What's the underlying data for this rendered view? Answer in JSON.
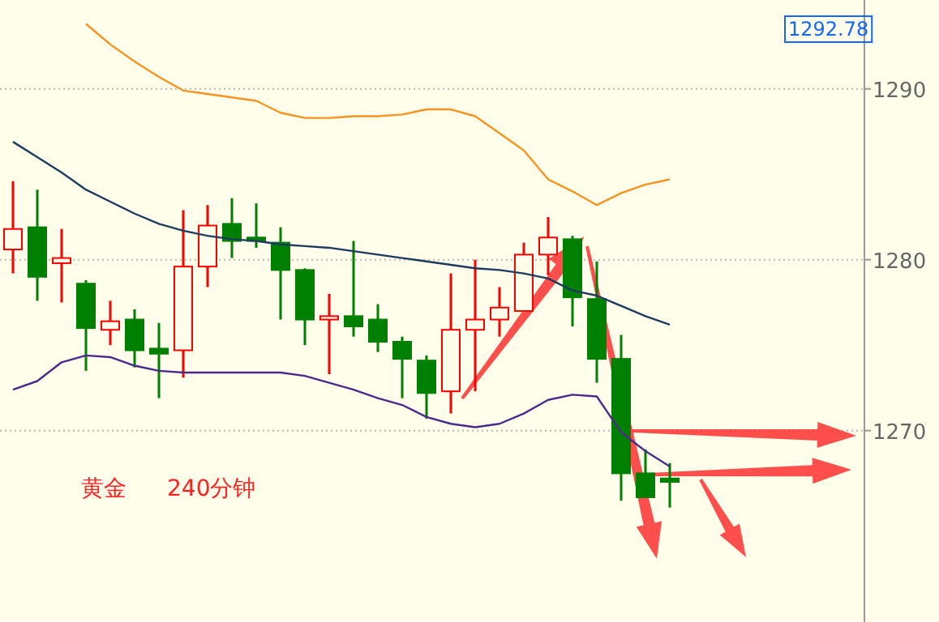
{
  "chart_data": {
    "type": "candlestick",
    "categories": [
      null,
      null,
      null,
      null,
      null,
      null,
      null,
      null,
      null,
      null,
      null,
      null,
      null,
      null,
      null,
      null,
      null,
      null,
      null,
      null,
      null,
      null,
      null,
      null,
      null,
      null,
      null,
      null
    ],
    "ohlc": [
      [
        1280.6,
        1284.6,
        1279.2,
        1281.8
      ],
      [
        1281.9,
        1284.1,
        1277.6,
        1279.0
      ],
      [
        1279.8,
        1281.8,
        1277.5,
        1280.1
      ],
      [
        1278.6,
        1278.8,
        1273.5,
        1276.0
      ],
      [
        1275.9,
        1277.6,
        1275.0,
        1276.4
      ],
      [
        1276.5,
        1277.1,
        1273.7,
        1274.7
      ],
      [
        1274.8,
        1276.3,
        1271.9,
        1274.5
      ],
      [
        1274.7,
        1282.9,
        1273.1,
        1279.6
      ],
      [
        1279.6,
        1283.2,
        1278.4,
        1282.0
      ],
      [
        1282.1,
        1283.6,
        1280.1,
        1281.1
      ],
      [
        1281.3,
        1283.3,
        1280.7,
        1281.1
      ],
      [
        1281.0,
        1281.9,
        1276.5,
        1279.4
      ],
      [
        1279.4,
        1279.5,
        1275.0,
        1276.5
      ],
      [
        1276.5,
        1278.0,
        1273.3,
        1276.7
      ],
      [
        1276.7,
        1281.1,
        1275.5,
        1276.1
      ],
      [
        1276.5,
        1277.4,
        1274.6,
        1275.2
      ],
      [
        1275.2,
        1275.5,
        1271.9,
        1274.2
      ],
      [
        1274.1,
        1274.4,
        1270.7,
        1272.2
      ],
      [
        1272.3,
        1279.2,
        1271.0,
        1275.9
      ],
      [
        1275.9,
        1280.0,
        1272.3,
        1276.5
      ],
      [
        1276.5,
        1278.4,
        1275.5,
        1277.2
      ],
      [
        1277.0,
        1281.0,
        1277.0,
        1280.3
      ],
      [
        1280.3,
        1282.5,
        1279.1,
        1281.3
      ],
      [
        1281.2,
        1281.4,
        1276.1,
        1277.8
      ],
      [
        1277.7,
        1279.9,
        1272.8,
        1274.2
      ],
      [
        1274.2,
        1275.6,
        1265.9,
        1267.5
      ],
      [
        1267.5,
        1268.9,
        1266.1,
        1266.1
      ],
      [
        1267.2,
        1268.1,
        1265.5,
        1267.0
      ]
    ],
    "series": [
      {
        "type": "line",
        "color": "#f7931e",
        "values": [
          null,
          null,
          null,
          1293.8,
          1292.6,
          1291.6,
          1290.7,
          1289.9,
          1289.7,
          1289.5,
          1289.3,
          1288.6,
          1288.3,
          1288.3,
          1288.4,
          1288.4,
          1288.5,
          1288.8,
          1288.8,
          1288.4,
          1287.4,
          1286.4,
          1284.7,
          1284.0,
          1283.2,
          1283.9,
          1284.4,
          1284.7
        ]
      },
      {
        "type": "line",
        "color": "#1f3a5f",
        "values": [
          1286.9,
          1286.0,
          1285.1,
          1284.1,
          1283.4,
          1282.7,
          1282.1,
          1281.7,
          1281.4,
          1281.2,
          1281.1,
          1280.9,
          1280.8,
          1280.7,
          1280.5,
          1280.3,
          1280.1,
          1279.9,
          1279.7,
          1279.5,
          1279.4,
          1279.2,
          1278.9,
          1278.2,
          1277.9,
          1277.3,
          1276.7,
          1276.2
        ]
      },
      {
        "type": "line",
        "color": "#4b2a8c",
        "values": [
          1272.4,
          1272.9,
          1274.0,
          1274.4,
          1274.3,
          1273.8,
          1273.5,
          1273.4,
          1273.4,
          1273.4,
          1273.4,
          1273.4,
          1273.2,
          1272.8,
          1272.4,
          1271.9,
          1271.5,
          1270.8,
          1270.4,
          1270.2,
          1270.4,
          1271.0,
          1271.8,
          1272.1,
          1272.0,
          1269.9,
          1268.8,
          1267.9
        ]
      }
    ],
    "ylim": [
      1258.8,
      1295.2
    ],
    "yticks": [
      1270,
      1280,
      1290
    ],
    "grid": "y",
    "annotations": [
      "1292.78",
      "黄金",
      "240分钟"
    ]
  }
}
